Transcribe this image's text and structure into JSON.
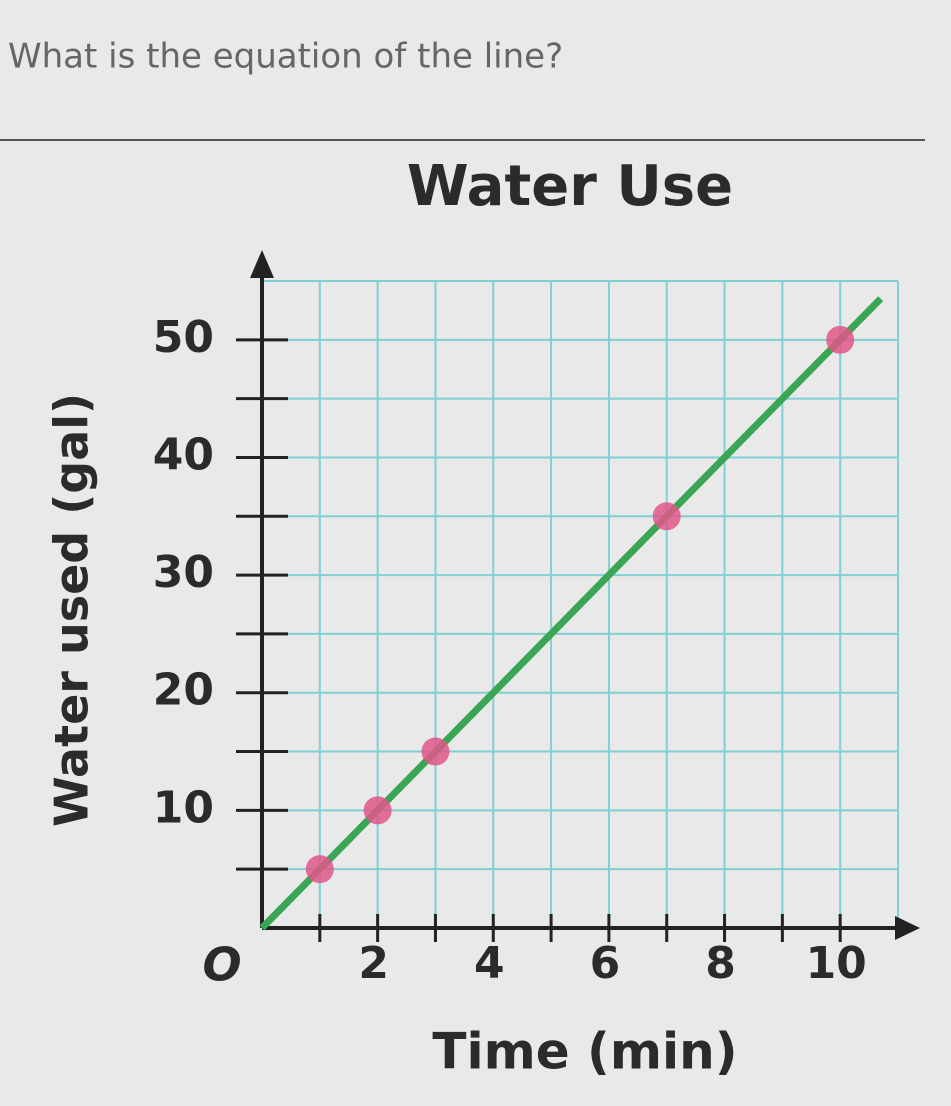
{
  "question": "What is the equation of the line?",
  "chart_data": {
    "type": "scatter",
    "title": "Water Use",
    "x_label": "Time (min)",
    "y_label": "Water used (gal)",
    "origin_label": "O",
    "x": [
      1,
      2,
      3,
      7,
      10
    ],
    "values": [
      5,
      10,
      15,
      35,
      50
    ],
    "color": "#e0578a",
    "line": {
      "x": [
        0,
        10.7
      ],
      "values": [
        0,
        53.5
      ],
      "color": "#3aa655"
    },
    "xlim": [
      0,
      11
    ],
    "ylim": [
      0,
      55
    ],
    "xticks": [
      2,
      4,
      6,
      8,
      10
    ],
    "yticks": [
      10,
      20,
      30,
      40,
      50
    ],
    "x_minor_ticks": [
      1,
      3,
      5,
      7,
      9
    ],
    "y_minor_ticks": [
      5,
      15,
      25,
      35,
      45
    ],
    "grid": true,
    "grid_color": "#7fd0d6"
  }
}
